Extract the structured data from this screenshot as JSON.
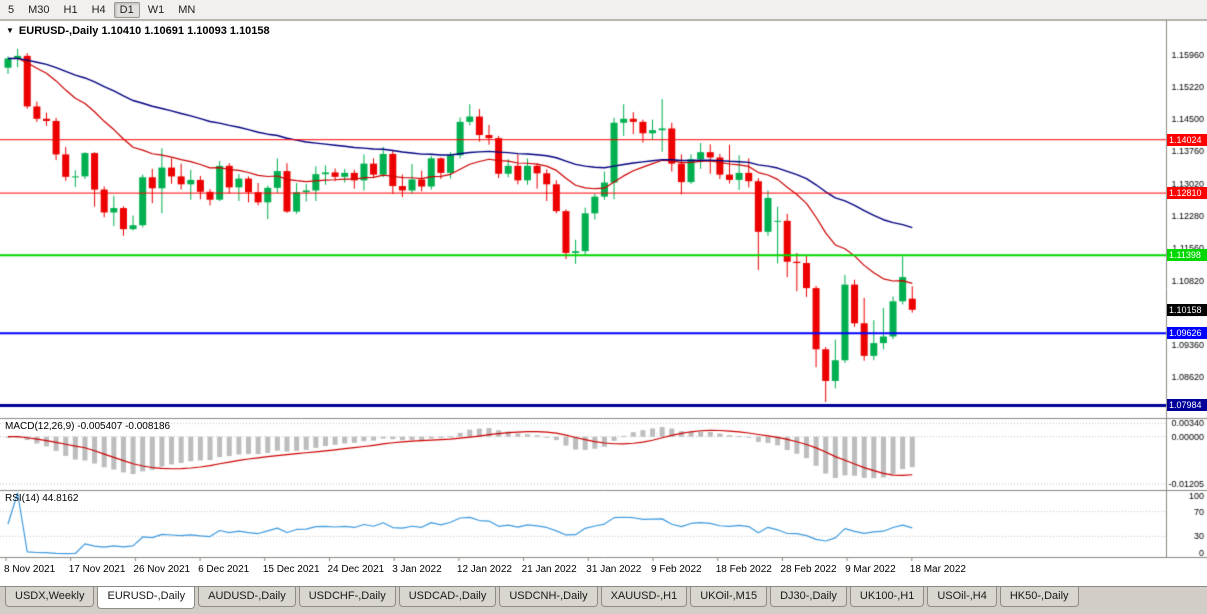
{
  "toolbar": {
    "timeframes": [
      "5",
      "M30",
      "H1",
      "H4",
      "D1",
      "W1",
      "MN"
    ],
    "active": "D1"
  },
  "chart_header": {
    "dropdown_icon": "▼",
    "symbol": "EURUSD-,Daily",
    "open": "1.10410",
    "high": "1.10691",
    "low": "1.10093",
    "close": "1.10158",
    "text": "EURUSD-,Daily  1.10410 1.10691 1.10093 1.10158"
  },
  "chart_data": {
    "type": "candlestick",
    "symbol": "EURUSD-",
    "timeframe": "Daily",
    "up_color": "#00B050",
    "down_color": "#EC0000",
    "candles": [
      [
        1.1566,
        1.1592,
        1.1552,
        1.1587
      ],
      [
        1.1587,
        1.1609,
        1.1567,
        1.1593
      ],
      [
        1.1593,
        1.1599,
        1.1473,
        1.1478
      ],
      [
        1.1478,
        1.1489,
        1.1443,
        1.145
      ],
      [
        1.145,
        1.1464,
        1.1434,
        1.1445
      ],
      [
        1.1445,
        1.1452,
        1.1356,
        1.1369
      ],
      [
        1.1369,
        1.1386,
        1.1309,
        1.1318
      ],
      [
        1.1318,
        1.1333,
        1.1295,
        1.1319
      ],
      [
        1.1319,
        1.1374,
        1.1313,
        1.1372
      ],
      [
        1.1372,
        1.1374,
        1.125,
        1.1289
      ],
      [
        1.1289,
        1.1296,
        1.1226,
        1.1237
      ],
      [
        1.1237,
        1.1275,
        1.1206,
        1.1247
      ],
      [
        1.1247,
        1.1251,
        1.1184,
        1.1199
      ],
      [
        1.1199,
        1.123,
        1.1196,
        1.1208
      ],
      [
        1.1208,
        1.1323,
        1.1203,
        1.1317
      ],
      [
        1.1317,
        1.1336,
        1.1258,
        1.1292
      ],
      [
        1.1292,
        1.1383,
        1.1235,
        1.1339
      ],
      [
        1.1339,
        1.136,
        1.1302,
        1.1319
      ],
      [
        1.1319,
        1.1348,
        1.1289,
        1.1301
      ],
      [
        1.1301,
        1.1334,
        1.1266,
        1.1311
      ],
      [
        1.1311,
        1.132,
        1.1267,
        1.1284
      ],
      [
        1.1284,
        1.129,
        1.1253,
        1.1266
      ],
      [
        1.1266,
        1.1354,
        1.1263,
        1.1343
      ],
      [
        1.1343,
        1.1349,
        1.128,
        1.1294
      ],
      [
        1.1294,
        1.1324,
        1.1263,
        1.1314
      ],
      [
        1.1314,
        1.1319,
        1.126,
        1.1283
      ],
      [
        1.1283,
        1.1304,
        1.1253,
        1.126
      ],
      [
        1.126,
        1.1298,
        1.1222,
        1.1293
      ],
      [
        1.1293,
        1.136,
        1.1281,
        1.1331
      ],
      [
        1.1331,
        1.1349,
        1.1236,
        1.1239
      ],
      [
        1.1239,
        1.1304,
        1.1234,
        1.1283
      ],
      [
        1.1283,
        1.1302,
        1.1262,
        1.1287
      ],
      [
        1.1287,
        1.1342,
        1.1263,
        1.1324
      ],
      [
        1.1324,
        1.1344,
        1.13,
        1.1328
      ],
      [
        1.1328,
        1.1337,
        1.1308,
        1.1318
      ],
      [
        1.1318,
        1.1336,
        1.1305,
        1.1327
      ],
      [
        1.1327,
        1.1334,
        1.1291,
        1.131
      ],
      [
        1.131,
        1.1369,
        1.1287,
        1.1348
      ],
      [
        1.1348,
        1.136,
        1.1315,
        1.1323
      ],
      [
        1.1323,
        1.1386,
        1.1317,
        1.137
      ],
      [
        1.137,
        1.1379,
        1.1279,
        1.1297
      ],
      [
        1.1297,
        1.1323,
        1.1272,
        1.1287
      ],
      [
        1.1287,
        1.1347,
        1.128,
        1.1312
      ],
      [
        1.1312,
        1.1332,
        1.1285,
        1.1296
      ],
      [
        1.1296,
        1.1366,
        1.1289,
        1.136
      ],
      [
        1.136,
        1.1362,
        1.1313,
        1.1327
      ],
      [
        1.1327,
        1.1374,
        1.1314,
        1.1367
      ],
      [
        1.1367,
        1.1453,
        1.136,
        1.1443
      ],
      [
        1.1443,
        1.1483,
        1.1435,
        1.1455
      ],
      [
        1.1455,
        1.1472,
        1.1398,
        1.1413
      ],
      [
        1.1413,
        1.1436,
        1.1391,
        1.1406
      ],
      [
        1.1406,
        1.1411,
        1.1315,
        1.1325
      ],
      [
        1.1325,
        1.1358,
        1.1317,
        1.1343
      ],
      [
        1.1343,
        1.1369,
        1.1301,
        1.131
      ],
      [
        1.131,
        1.136,
        1.13,
        1.1343
      ],
      [
        1.1343,
        1.1349,
        1.1291,
        1.1326
      ],
      [
        1.1326,
        1.1335,
        1.1263,
        1.1301
      ],
      [
        1.1301,
        1.131,
        1.1235,
        1.124
      ],
      [
        1.124,
        1.1244,
        1.1131,
        1.1145
      ],
      [
        1.1145,
        1.1175,
        1.112,
        1.1149
      ],
      [
        1.1149,
        1.1248,
        1.1141,
        1.1235
      ],
      [
        1.1235,
        1.128,
        1.1221,
        1.1273
      ],
      [
        1.1273,
        1.133,
        1.1266,
        1.1305
      ],
      [
        1.1305,
        1.1452,
        1.1267,
        1.1441
      ],
      [
        1.1441,
        1.1483,
        1.1411,
        1.145
      ],
      [
        1.145,
        1.1465,
        1.1415,
        1.1443
      ],
      [
        1.1443,
        1.1448,
        1.1396,
        1.1417
      ],
      [
        1.1417,
        1.1448,
        1.1402,
        1.1424
      ],
      [
        1.1424,
        1.1495,
        1.1375,
        1.1428
      ],
      [
        1.1428,
        1.1441,
        1.133,
        1.1348
      ],
      [
        1.1348,
        1.1369,
        1.1278,
        1.1306
      ],
      [
        1.1306,
        1.1369,
        1.1302,
        1.1358
      ],
      [
        1.1358,
        1.1395,
        1.1336,
        1.1374
      ],
      [
        1.1374,
        1.1392,
        1.1325,
        1.1362
      ],
      [
        1.1362,
        1.137,
        1.1313,
        1.1323
      ],
      [
        1.1323,
        1.1391,
        1.1303,
        1.1311
      ],
      [
        1.1311,
        1.1367,
        1.1288,
        1.1327
      ],
      [
        1.1327,
        1.136,
        1.1294,
        1.1308
      ],
      [
        1.1308,
        1.1315,
        1.1106,
        1.1193
      ],
      [
        1.1193,
        1.1287,
        1.1184,
        1.127
      ],
      [
        1.1216,
        1.125,
        1.1121,
        1.1218
      ],
      [
        1.1218,
        1.1234,
        1.109,
        1.1125
      ],
      [
        1.1125,
        1.1145,
        1.1058,
        1.1122
      ],
      [
        1.1122,
        1.1139,
        1.1045,
        1.1065
      ],
      [
        1.1065,
        1.107,
        1.0885,
        1.0926
      ],
      [
        1.0926,
        1.0931,
        1.0806,
        1.0854
      ],
      [
        1.0854,
        1.0948,
        1.0837,
        1.0901
      ],
      [
        1.0901,
        1.1095,
        1.0895,
        1.1073
      ],
      [
        1.1073,
        1.1084,
        1.0977,
        1.0985
      ],
      [
        1.0985,
        1.1043,
        1.09,
        1.0911
      ],
      [
        1.0911,
        1.0992,
        1.0901,
        1.094
      ],
      [
        1.094,
        1.102,
        1.0926,
        1.0955
      ],
      [
        1.0955,
        1.1046,
        1.0949,
        1.1035
      ],
      [
        1.1035,
        1.1137,
        1.1028,
        1.109
      ],
      [
        1.1041,
        1.10691,
        1.10093,
        1.10158
      ]
    ],
    "y_axis": {
      "min": 1.0772,
      "max": 1.167,
      "tick_labels": [
        "1.15960",
        "1.15220",
        "1.14500",
        "1.13760",
        "1.13020",
        "1.12280",
        "1.11560",
        "1.10820",
        "1.10080",
        "1.09360",
        "1.08620"
      ]
    },
    "x_axis": {
      "labels": [
        "8 Nov 2021",
        "17 Nov 2021",
        "26 Nov 2021",
        "6 Dec 2021",
        "15 Dec 2021",
        "24 Dec 2021",
        "3 Jan 2022",
        "12 Jan 2022",
        "21 Jan 2022",
        "31 Jan 2022",
        "9 Feb 2022",
        "18 Feb 2022",
        "28 Feb 2022",
        "9 Mar 2022",
        "18 Mar 2022"
      ]
    },
    "overlays": [
      {
        "name": "ma-fast",
        "type": "ema",
        "period": 20,
        "color": "#CC0000"
      },
      {
        "name": "ma-slow",
        "type": "ema",
        "period": 55,
        "color": "#000080"
      }
    ],
    "hlines": [
      {
        "label": "1.14024",
        "value": 1.14024,
        "color": "#FF0000",
        "width": 1
      },
      {
        "label": "1.12810",
        "value": 1.1281,
        "color": "#FF0000",
        "width": 1
      },
      {
        "label": "1.11398",
        "value": 1.11398,
        "color": "#00D800",
        "width": 2
      },
      {
        "label": "1.09626",
        "value": 1.09626,
        "color": "#0000FF",
        "width": 2
      },
      {
        "label": "1.07984",
        "value": 1.07984,
        "color": "#000099",
        "width": 3
      }
    ],
    "current_price": {
      "label": "1.10158",
      "value": 1.10158,
      "color": "#000000"
    },
    "macd": {
      "label": "MACD(12,26,9) -0.005407 -0.008186",
      "name": "MACD(12,26,9)",
      "main_value": "-0.005407",
      "signal_value": "-0.008186",
      "fast": 12,
      "slow": 26,
      "signal": 9,
      "histogram_color": "#BDBDBD",
      "signal_color": "#CC0000",
      "axis": {
        "min": -0.0128,
        "max": 0.004,
        "ticks": [
          {
            "label": "0.00340",
            "value": 0.0034
          },
          {
            "label": "0.00000",
            "value": 0
          },
          {
            "label": "-0.01205",
            "value": -0.01205
          }
        ]
      }
    },
    "rsi": {
      "label": "RSI(14) 44.8162",
      "name": "RSI(14)",
      "value": "44.8162",
      "period": 14,
      "line_color": "#3E9ADE",
      "levels": [
        70,
        30
      ],
      "axis": {
        "min": 0,
        "max": 100,
        "ticks": [
          {
            "label": "100",
            "value": 100
          },
          {
            "label": "70",
            "value": 70
          },
          {
            "label": "30",
            "value": 30
          },
          {
            "label": "0",
            "value": 0
          }
        ]
      }
    }
  },
  "tabs": {
    "items": [
      {
        "label": "USDX,Weekly",
        "active": false
      },
      {
        "label": "EURUSD-,Daily",
        "active": true
      },
      {
        "label": "AUDUSD-,Daily",
        "active": false
      },
      {
        "label": "USDCHF-,Daily",
        "active": false
      },
      {
        "label": "USDCAD-,Daily",
        "active": false
      },
      {
        "label": "USDCNH-,Daily",
        "active": false
      },
      {
        "label": "XAUUSD-,H1",
        "active": false
      },
      {
        "label": "UKOil-,M15",
        "active": false
      },
      {
        "label": "DJ30-,Daily",
        "active": false
      },
      {
        "label": "UK100-,H1",
        "active": false
      },
      {
        "label": "USOil-,H4",
        "active": false
      },
      {
        "label": "HK50-,Daily",
        "active": false
      }
    ]
  }
}
